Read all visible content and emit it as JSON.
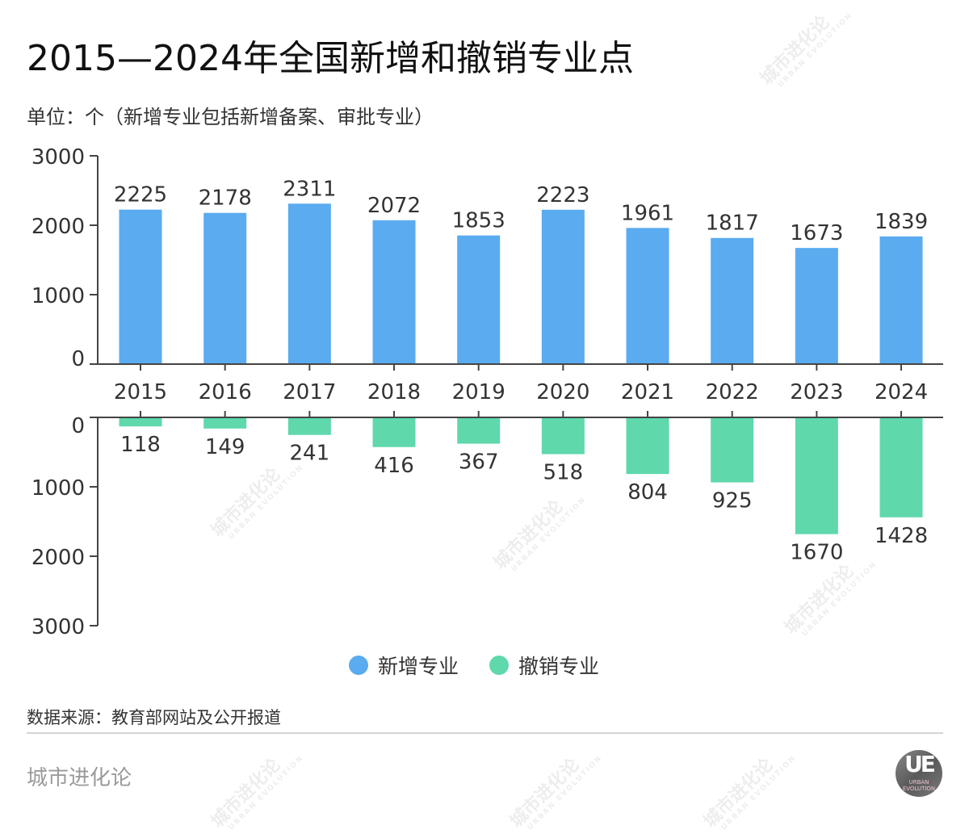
{
  "header": {
    "title": "2015—2024年全国新增和撤销专业点",
    "subtitle": "单位：个（新增专业包括新增备案、审批专业）"
  },
  "chart_data": [
    {
      "type": "bar",
      "title": "新增专业",
      "categories": [
        "2015",
        "2016",
        "2017",
        "2018",
        "2019",
        "2020",
        "2021",
        "2022",
        "2023",
        "2024"
      ],
      "values": [
        2225,
        2178,
        2311,
        2072,
        1853,
        2223,
        1961,
        1817,
        1673,
        1839
      ],
      "ylim": [
        0,
        3000
      ],
      "yticks": [
        "0",
        "1000",
        "2000",
        "3000"
      ],
      "color": "#5aabef",
      "direction": "up",
      "grid": false
    },
    {
      "type": "bar",
      "title": "撤销专业",
      "categories": [
        "2015",
        "2016",
        "2017",
        "2018",
        "2019",
        "2020",
        "2021",
        "2022",
        "2023",
        "2024"
      ],
      "values": [
        118,
        149,
        241,
        416,
        367,
        518,
        804,
        925,
        1670,
        1428
      ],
      "ylim": [
        0,
        3000
      ],
      "yticks": [
        "0",
        "1000",
        "2000",
        "3000"
      ],
      "color": "#5fd8ac",
      "direction": "down",
      "grid": false
    }
  ],
  "legend": {
    "placement": "bottom-center",
    "items": [
      {
        "label": "新增专业",
        "color": "#5aabef"
      },
      {
        "label": "撤销专业",
        "color": "#5fd8ac"
      }
    ]
  },
  "footer": {
    "source": "数据来源：教育部网站及公开报道",
    "brand": "城市进化论",
    "logo_letters": "UE",
    "logo_text": "URBAN EVOLUTION"
  },
  "watermark": {
    "text": "城市进化论",
    "subtext": "URBAN EVOLUTION"
  }
}
